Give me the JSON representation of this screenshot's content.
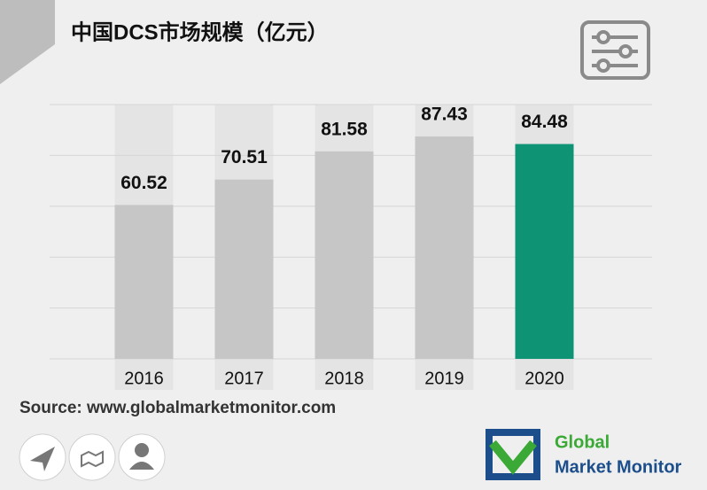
{
  "chart_data": {
    "type": "bar",
    "title": "中国DCS市场规模（亿元）",
    "categories": [
      "2016",
      "2017",
      "2018",
      "2019",
      "2020"
    ],
    "values": [
      60.52,
      70.51,
      81.58,
      87.43,
      84.48
    ],
    "colors": [
      "#c6c6c6",
      "#c6c6c6",
      "#c6c6c6",
      "#c6c6c6",
      "#0e9474"
    ],
    "ylim": [
      0,
      100
    ],
    "yticks": [
      0,
      20,
      40,
      60,
      80,
      100
    ],
    "grid": true,
    "source": "Source: www.globalmarketmonitor.com"
  },
  "logo": {
    "line1": "Global",
    "line2": "Market Monitor"
  }
}
